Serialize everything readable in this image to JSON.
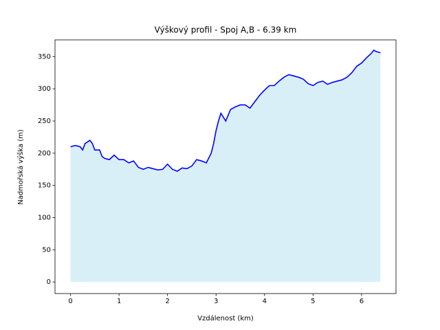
{
  "chart_data": {
    "type": "line",
    "title": "Výškový profil - Spoj A,B - 6.39 km",
    "x_label": "Vzdálenost (km)",
    "y_label": "Nadmořská výška (m)",
    "x": [
      0,
      0.1,
      0.2,
      0.25,
      0.3,
      0.4,
      0.45,
      0.5,
      0.6,
      0.65,
      0.7,
      0.8,
      0.9,
      1.0,
      1.1,
      1.2,
      1.3,
      1.4,
      1.5,
      1.6,
      1.7,
      1.8,
      1.9,
      2.0,
      2.1,
      2.2,
      2.3,
      2.4,
      2.5,
      2.6,
      2.7,
      2.8,
      2.9,
      2.95,
      3.0,
      3.05,
      3.1,
      3.2,
      3.3,
      3.4,
      3.5,
      3.6,
      3.7,
      3.8,
      3.9,
      4.0,
      4.1,
      4.2,
      4.3,
      4.4,
      4.5,
      4.6,
      4.7,
      4.8,
      4.9,
      5.0,
      5.1,
      5.2,
      5.3,
      5.4,
      5.5,
      5.6,
      5.7,
      5.8,
      5.9,
      6.0,
      6.1,
      6.2,
      6.25,
      6.3,
      6.39
    ],
    "values": [
      210,
      212,
      210,
      205,
      215,
      220,
      215,
      205,
      205,
      195,
      192,
      190,
      197,
      190,
      190,
      185,
      188,
      178,
      175,
      178,
      176,
      174,
      175,
      183,
      175,
      172,
      177,
      176,
      180,
      190,
      188,
      185,
      200,
      215,
      235,
      250,
      262,
      250,
      268,
      272,
      275,
      275,
      270,
      280,
      290,
      298,
      305,
      305,
      312,
      318,
      322,
      320,
      318,
      315,
      308,
      305,
      310,
      312,
      307,
      310,
      312,
      314,
      318,
      325,
      335,
      340,
      348,
      355,
      360,
      358,
      356
    ],
    "color": "#0000ff",
    "fill_color": "#d9eff8",
    "xlim": [
      -0.32,
      6.71
    ],
    "ylim": [
      -18,
      376
    ],
    "xticks": [
      0,
      1,
      2,
      3,
      4,
      5,
      6
    ],
    "yticks": [
      0,
      50,
      100,
      150,
      200,
      250,
      300,
      350
    ]
  }
}
